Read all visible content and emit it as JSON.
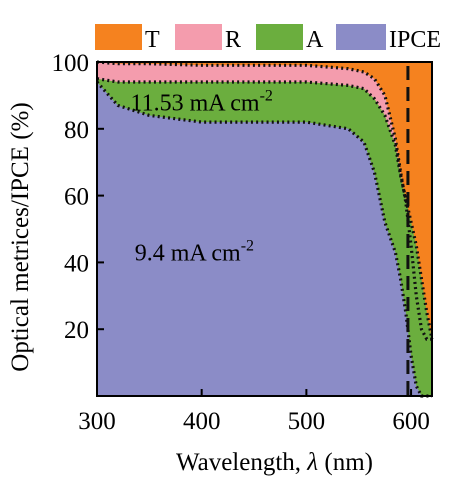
{
  "chart_data": {
    "type": "area",
    "xlabel_prefix": "Wavelength, ",
    "xlabel_symbol": "λ",
    "xlabel_suffix": " (nm)",
    "ylabel": "Optical metrices/IPCE (%)",
    "xlim": [
      300,
      620
    ],
    "ylim": [
      0,
      100
    ],
    "xticks": [
      300,
      400,
      500,
      600
    ],
    "yticks": [
      20,
      40,
      60,
      80,
      100
    ],
    "grid": false,
    "legend_position": "top",
    "series": [
      {
        "name": "T",
        "color": "#F5821F"
      },
      {
        "name": "R",
        "color": "#F49CAD"
      },
      {
        "name": "A",
        "color": "#6BAE3E"
      },
      {
        "name": "IPCE",
        "color": "#8B8CC7"
      }
    ],
    "boundaries": {
      "x": [
        300,
        320,
        350,
        400,
        450,
        500,
        540,
        555,
        565,
        575,
        585,
        590,
        595,
        600,
        605,
        610,
        615,
        620
      ],
      "ipce": [
        94,
        87,
        84,
        82,
        82,
        82,
        80,
        76,
        67,
        52,
        43,
        35,
        25,
        12,
        3,
        0,
        0,
        0
      ],
      "absorption": [
        95,
        94,
        94,
        94,
        94,
        94,
        93,
        92,
        89,
        84,
        75,
        66,
        59,
        52,
        45,
        35,
        25,
        17
      ],
      "reflection": [
        100,
        99.5,
        99.5,
        99,
        99,
        99,
        98,
        97,
        95,
        90,
        77,
        67,
        58,
        45,
        30,
        20,
        17,
        17
      ]
    },
    "vertical_dashed_line_x": 597,
    "annotations": [
      {
        "base": "11.53 mA cm",
        "sup": "-2",
        "x": 400,
        "y": 85.5
      },
      {
        "base": "9.4 mA cm",
        "sup": "-2",
        "x": 393,
        "y": 40.5
      }
    ]
  }
}
